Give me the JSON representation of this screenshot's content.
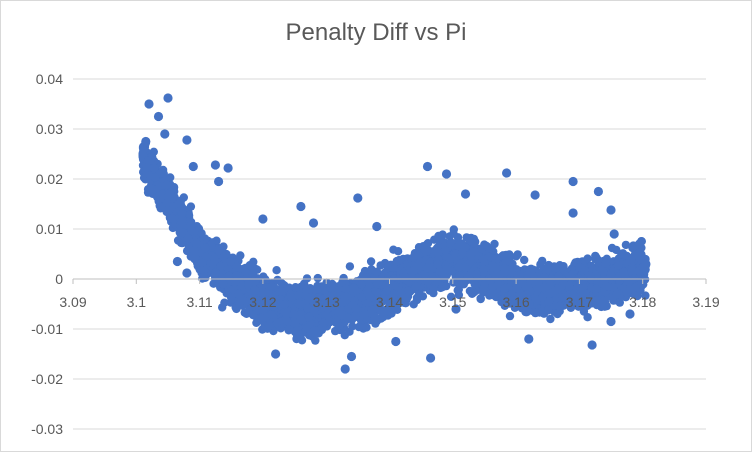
{
  "chart_data": {
    "type": "scatter",
    "title": "Penalty Diff vs Pi",
    "xlabel": "",
    "ylabel": "",
    "xlim": [
      3.09,
      3.19
    ],
    "ylim": [
      -0.03,
      0.04
    ],
    "x_ticks": [
      "3.09",
      "3.1",
      "3.11",
      "3.12",
      "3.13",
      "3.14",
      "3.15",
      "3.16",
      "3.17",
      "3.18",
      "3.19"
    ],
    "y_ticks": [
      "0.04",
      "0.03",
      "0.02",
      "0.01",
      "0",
      "-0.01",
      "-0.02",
      "-0.03"
    ],
    "grid": "horizontal",
    "legend": "none",
    "marker_color": "#4472C4",
    "grid_color": "#d9d9d9",
    "series": [
      {
        "trend_x": [
          3.101,
          3.105,
          3.11,
          3.115,
          3.12,
          3.125,
          3.13,
          3.135,
          3.14,
          3.145,
          3.15,
          3.155,
          3.16,
          3.165,
          3.17,
          3.175,
          3.18
        ],
        "trend_y": [
          0.025,
          0.016,
          0.006,
          0.0,
          -0.004,
          -0.006,
          -0.006,
          -0.004,
          -0.002,
          0.002,
          0.004,
          0.002,
          -0.001,
          -0.002,
          -0.001,
          0.0,
          0.002
        ],
        "outliers": [
          [
            3.1015,
            0.0275
          ],
          [
            3.102,
            0.035
          ],
          [
            3.1035,
            0.0325
          ],
          [
            3.105,
            0.0362
          ],
          [
            3.1045,
            0.029
          ],
          [
            3.1025,
            0.018
          ],
          [
            3.108,
            0.0278
          ],
          [
            3.109,
            0.0225
          ],
          [
            3.1125,
            0.0228
          ],
          [
            3.1145,
            0.0222
          ],
          [
            3.113,
            0.0195
          ],
          [
            3.12,
            0.012
          ],
          [
            3.126,
            0.0145
          ],
          [
            3.128,
            0.0112
          ],
          [
            3.135,
            0.0162
          ],
          [
            3.138,
            0.0105
          ],
          [
            3.146,
            0.0225
          ],
          [
            3.149,
            0.021
          ],
          [
            3.152,
            0.017
          ],
          [
            3.1585,
            0.0212
          ],
          [
            3.163,
            0.0168
          ],
          [
            3.169,
            0.0195
          ],
          [
            3.173,
            0.0175
          ],
          [
            3.169,
            0.0132
          ],
          [
            3.175,
            0.0138
          ],
          [
            3.133,
            -0.018
          ],
          [
            3.1465,
            -0.0158
          ],
          [
            3.162,
            -0.012
          ],
          [
            3.172,
            -0.0132
          ],
          [
            3.122,
            -0.015
          ],
          [
            3.134,
            -0.0155
          ],
          [
            3.141,
            -0.0125
          ],
          [
            3.175,
            -0.0085
          ],
          [
            3.178,
            -0.007
          ],
          [
            3.1805,
            0.003
          ],
          [
            3.1795,
            0.007
          ],
          [
            3.1755,
            0.009
          ],
          [
            3.1065,
            0.0035
          ],
          [
            3.108,
            0.0012
          ],
          [
            3.1505,
            -0.006
          ]
        ]
      }
    ]
  }
}
